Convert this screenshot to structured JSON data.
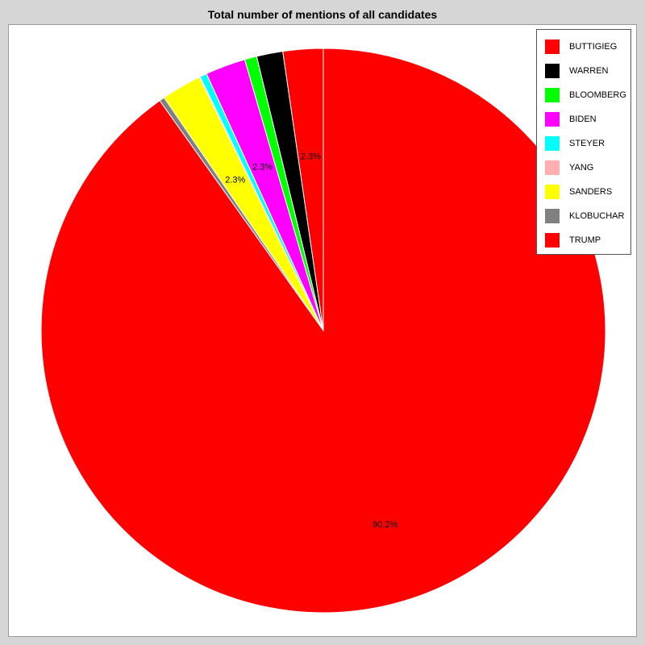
{
  "chart_data": {
    "type": "pie",
    "title": "Total number of mentions of all candidates",
    "slices": [
      {
        "name": "BUTTIGIEG",
        "value": 2.3,
        "color": "#ff0000",
        "label": "2.3%"
      },
      {
        "name": "WARREN",
        "value": 1.5,
        "color": "#000000",
        "label": ""
      },
      {
        "name": "BLOOMBERG",
        "value": 0.7,
        "color": "#00ff00",
        "label": ""
      },
      {
        "name": "BIDEN",
        "value": 2.3,
        "color": "#ff00ff",
        "label": "2.3%"
      },
      {
        "name": "STEYER",
        "value": 0.4,
        "color": "#00ffff",
        "label": ""
      },
      {
        "name": "YANG",
        "value": 0.05,
        "color": "#ffafaf",
        "label": ""
      },
      {
        "name": "SANDERS",
        "value": 2.3,
        "color": "#ffff00",
        "label": "2.3%"
      },
      {
        "name": "KLOBUCHAR",
        "value": 0.3,
        "color": "#808080",
        "label": ""
      },
      {
        "name": "TRUMP",
        "value": 90.2,
        "color": "#ff0000",
        "label": "90.2%"
      }
    ],
    "legend_position": "top-right",
    "start_angle": "12 o'clock",
    "direction": "counter-clockwise"
  }
}
